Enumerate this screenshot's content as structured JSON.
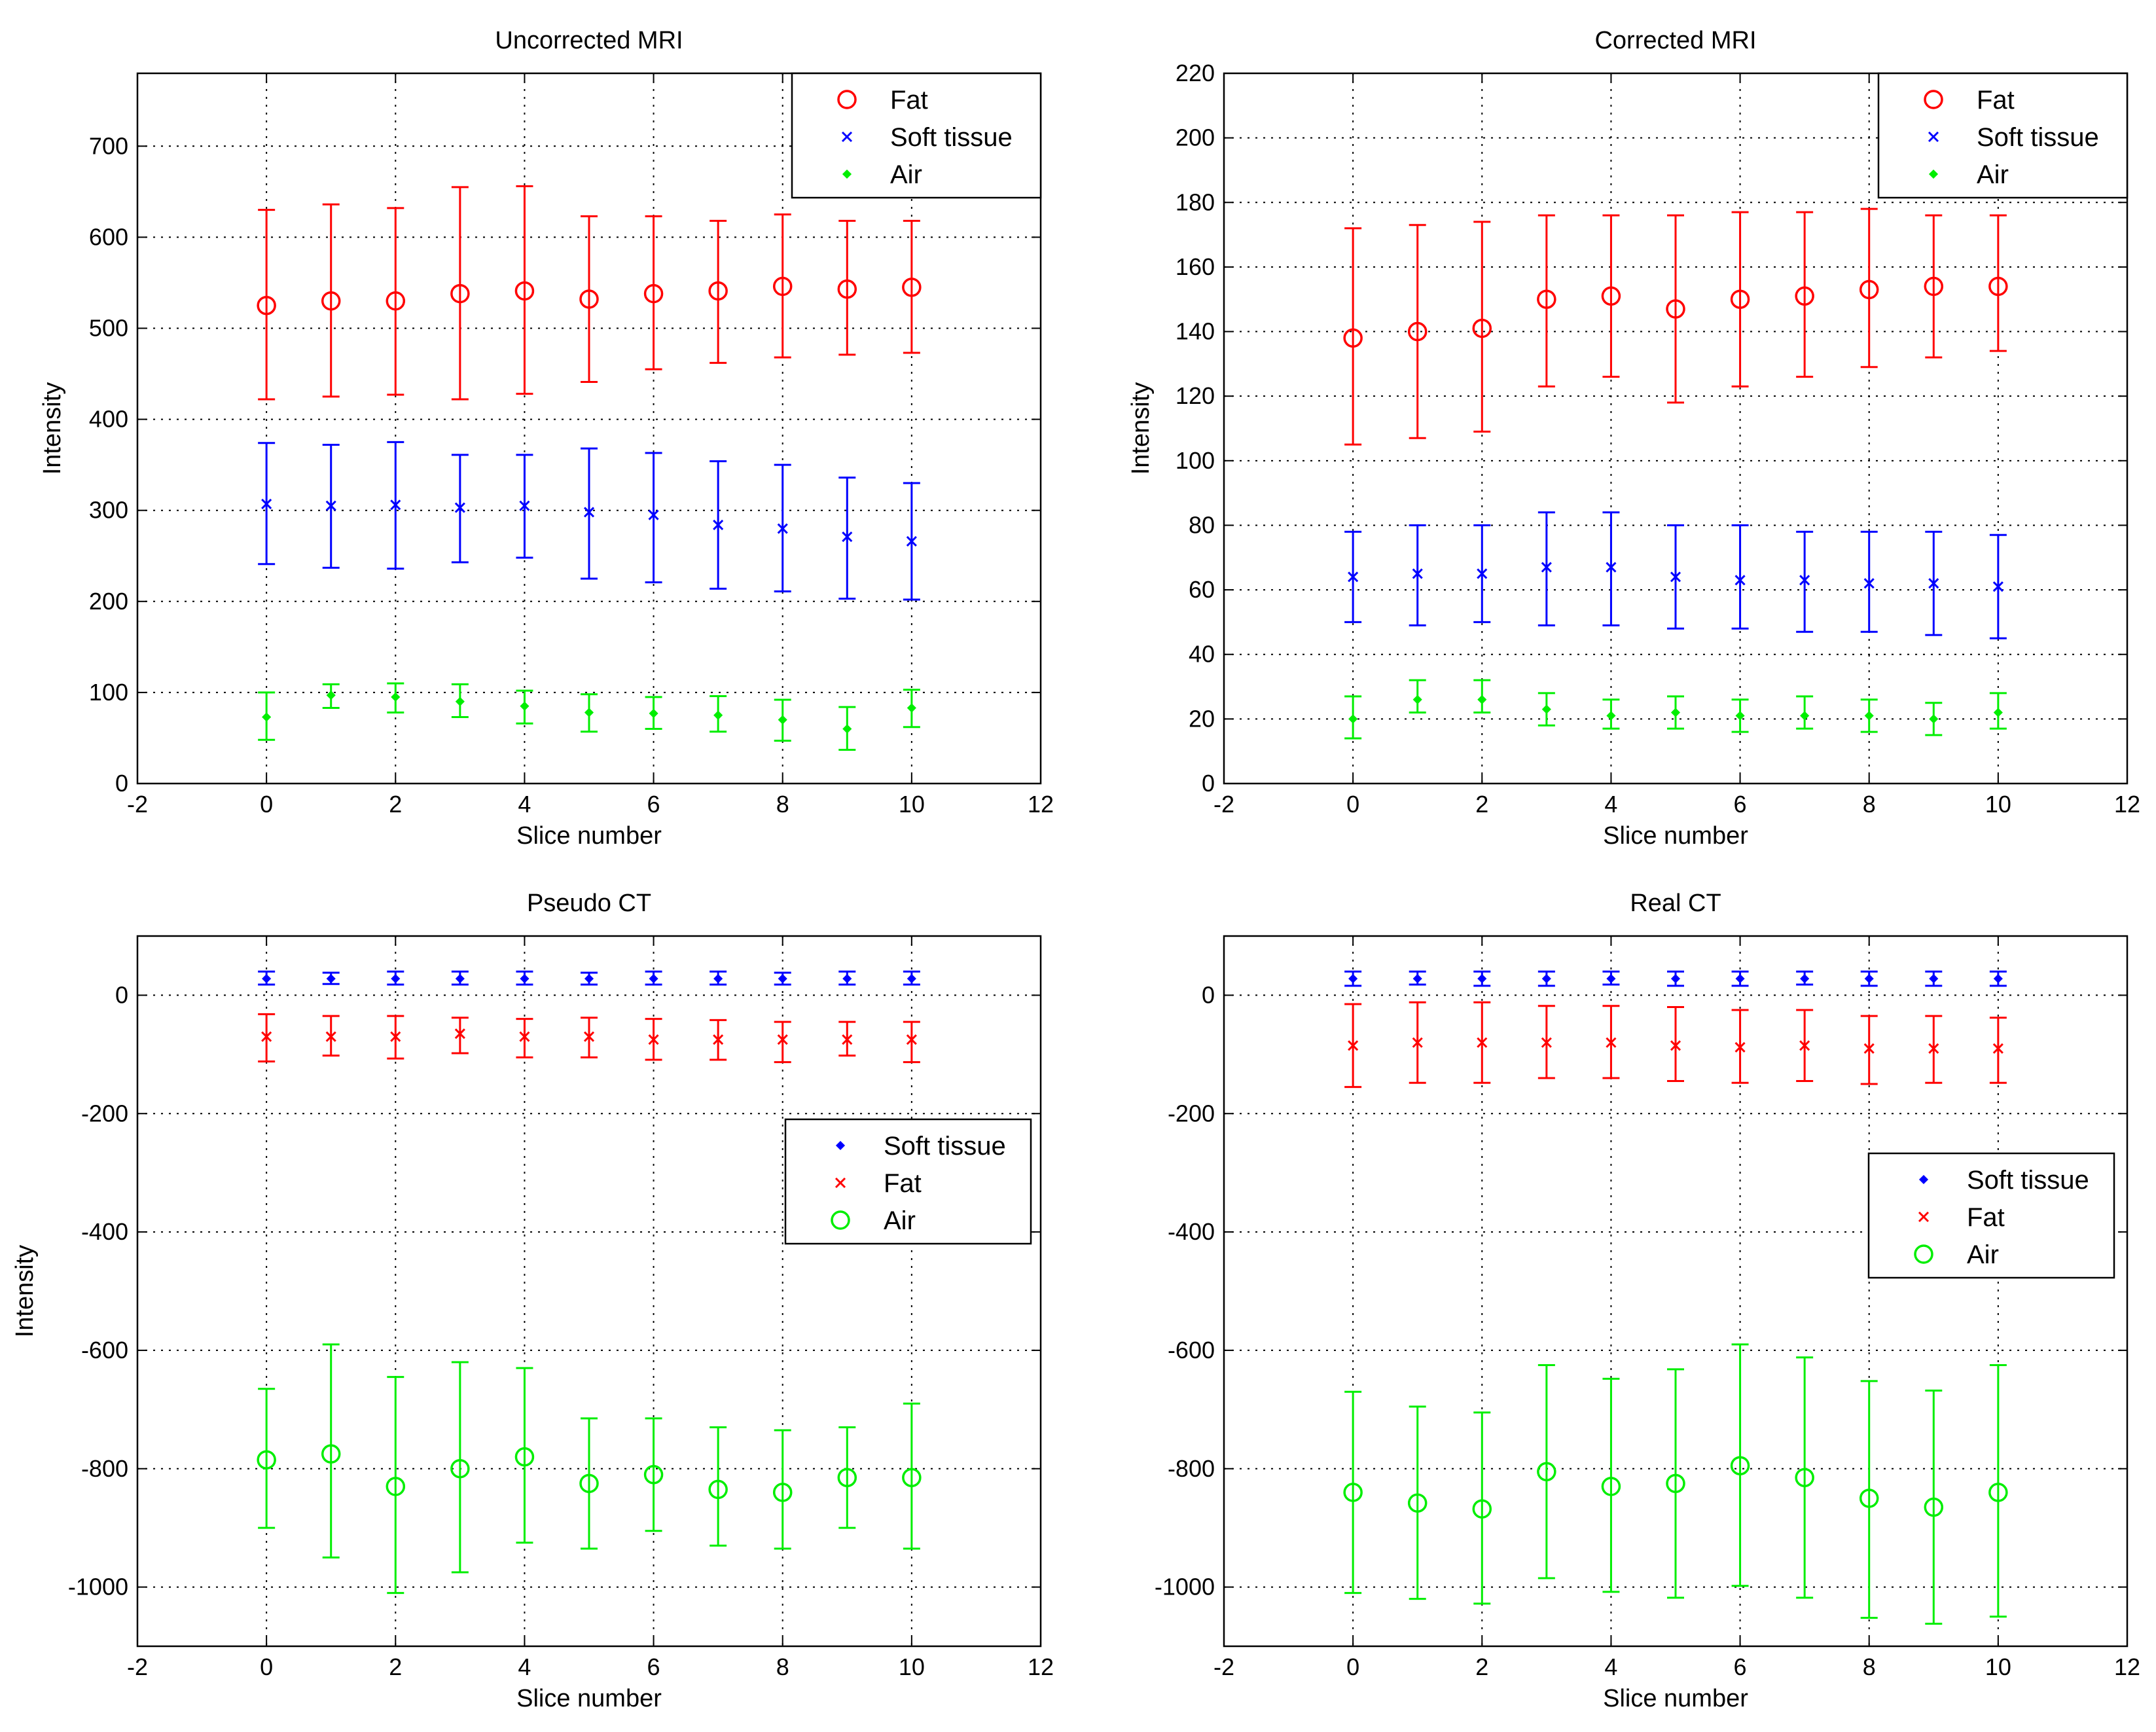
{
  "chart_data": [
    {
      "type": "scatter",
      "subtype": "errorbar",
      "title": "Uncorrected MRI",
      "xlabel": "Slice number",
      "ylabel": "Intensity",
      "xlim": [
        -2,
        12
      ],
      "ylim": [
        0,
        780
      ],
      "xticks": [
        -2,
        0,
        2,
        4,
        6,
        8,
        10,
        12
      ],
      "yticks": [
        0,
        100,
        200,
        300,
        400,
        500,
        600,
        700
      ],
      "grid": true,
      "legend_position": "top-right",
      "series": [
        {
          "name": "Fat",
          "color": "#ff0000",
          "marker": "circle",
          "x": [
            0,
            1,
            2,
            3,
            4,
            5,
            6,
            7,
            8,
            9,
            10
          ],
          "y": [
            525,
            530,
            530,
            538,
            541,
            532,
            538,
            541,
            546,
            543,
            545
          ],
          "yerr_low": [
            422,
            425,
            427,
            422,
            428,
            441,
            455,
            462,
            468,
            471,
            473
          ],
          "yerr_high": [
            630,
            636,
            632,
            655,
            656,
            623,
            623,
            618,
            625,
            618,
            618
          ]
        },
        {
          "name": "Soft tissue",
          "color": "#0000ff",
          "marker": "x",
          "x": [
            0,
            1,
            2,
            3,
            4,
            5,
            6,
            7,
            8,
            9,
            10
          ],
          "y": [
            307,
            305,
            306,
            303,
            305,
            298,
            295,
            284,
            280,
            271,
            266
          ],
          "yerr_low": [
            241,
            237,
            236,
            243,
            248,
            225,
            221,
            214,
            211,
            203,
            202
          ],
          "yerr_high": [
            374,
            372,
            375,
            361,
            361,
            368,
            363,
            354,
            350,
            336,
            330
          ]
        },
        {
          "name": "Air",
          "color": "#00ee00",
          "marker": "dot",
          "x": [
            0,
            1,
            2,
            3,
            4,
            5,
            6,
            7,
            8,
            9,
            10
          ],
          "y": [
            73,
            97,
            95,
            90,
            85,
            78,
            77,
            75,
            70,
            60,
            83
          ],
          "yerr_low": [
            48,
            83,
            78,
            73,
            66,
            57,
            60,
            57,
            47,
            37,
            62
          ],
          "yerr_high": [
            100,
            109,
            110,
            109,
            102,
            98,
            95,
            96,
            92,
            84,
            103
          ]
        }
      ]
    },
    {
      "type": "scatter",
      "subtype": "errorbar",
      "title": "Corrected MRI",
      "xlabel": "Slice number",
      "ylabel": "Intensity",
      "xlim": [
        -2,
        12
      ],
      "ylim": [
        0,
        220
      ],
      "xticks": [
        -2,
        0,
        2,
        4,
        6,
        8,
        10,
        12
      ],
      "yticks": [
        0,
        20,
        40,
        60,
        80,
        100,
        120,
        140,
        160,
        180,
        200,
        220
      ],
      "grid": true,
      "legend_position": "top-right",
      "series": [
        {
          "name": "Fat",
          "color": "#ff0000",
          "marker": "circle",
          "x": [
            0,
            1,
            2,
            3,
            4,
            5,
            6,
            7,
            8,
            9,
            10
          ],
          "y": [
            138,
            140,
            141,
            150,
            151,
            147,
            150,
            151,
            153,
            154,
            154
          ],
          "yerr_low": [
            105,
            107,
            109,
            123,
            126,
            118,
            123,
            126,
            129,
            132,
            134
          ],
          "yerr_high": [
            172,
            173,
            174,
            176,
            176,
            176,
            177,
            177,
            178,
            176,
            176
          ]
        },
        {
          "name": "Soft tissue",
          "color": "#0000ff",
          "marker": "x",
          "x": [
            0,
            1,
            2,
            3,
            4,
            5,
            6,
            7,
            8,
            9,
            10
          ],
          "y": [
            64,
            65,
            65,
            67,
            67,
            64,
            63,
            63,
            62,
            62,
            61
          ],
          "yerr_low": [
            50,
            49,
            50,
            49,
            49,
            48,
            48,
            47,
            47,
            46,
            45
          ],
          "yerr_high": [
            78,
            80,
            80,
            84,
            84,
            80,
            80,
            78,
            78,
            78,
            77
          ]
        },
        {
          "name": "Air",
          "color": "#00ee00",
          "marker": "dot",
          "x": [
            0,
            1,
            2,
            3,
            4,
            5,
            6,
            7,
            8,
            9,
            10
          ],
          "y": [
            20,
            26,
            26,
            23,
            21,
            22,
            21,
            21,
            21,
            20,
            22
          ],
          "yerr_low": [
            14,
            22,
            22,
            18,
            17,
            17,
            16,
            17,
            16,
            15,
            17
          ],
          "yerr_high": [
            27,
            32,
            32,
            28,
            26,
            27,
            26,
            27,
            26,
            25,
            28
          ]
        }
      ]
    },
    {
      "type": "scatter",
      "subtype": "errorbar",
      "title": "Pseudo CT",
      "xlabel": "Slice number",
      "ylabel": "Intensity",
      "xlim": [
        -2,
        12
      ],
      "ylim": [
        -1100,
        100
      ],
      "xticks": [
        -2,
        0,
        2,
        4,
        6,
        8,
        10,
        12
      ],
      "yticks": [
        -1000,
        -800,
        -600,
        -400,
        -200,
        0
      ],
      "grid": true,
      "legend_position": "right",
      "series": [
        {
          "name": "Soft tissue",
          "color": "#0000ff",
          "marker": "dot",
          "x": [
            0,
            1,
            2,
            3,
            4,
            5,
            6,
            7,
            8,
            9,
            10
          ],
          "y": [
            28,
            28,
            28,
            28,
            28,
            28,
            28,
            28,
            28,
            28,
            28
          ],
          "yerr_low": [
            18,
            19,
            18,
            18,
            18,
            18,
            18,
            18,
            18,
            18,
            18
          ],
          "yerr_high": [
            40,
            38,
            40,
            40,
            40,
            38,
            40,
            40,
            38,
            40,
            40
          ]
        },
        {
          "name": "Fat",
          "color": "#ff0000",
          "marker": "x",
          "x": [
            0,
            1,
            2,
            3,
            4,
            5,
            6,
            7,
            8,
            9,
            10
          ],
          "y": [
            -70,
            -70,
            -70,
            -65,
            -70,
            -70,
            -75,
            -75,
            -75,
            -75,
            -75
          ],
          "yerr_low": [
            -112,
            -102,
            -107,
            -98,
            -105,
            -105,
            -109,
            -109,
            -113,
            -102,
            -113
          ],
          "yerr_high": [
            -32,
            -35,
            -35,
            -38,
            -40,
            -38,
            -40,
            -42,
            -45,
            -45,
            -45
          ]
        },
        {
          "name": "Air",
          "color": "#00ee00",
          "marker": "circle",
          "x": [
            0,
            1,
            2,
            3,
            4,
            5,
            6,
            7,
            8,
            9,
            10
          ],
          "y": [
            -785,
            -775,
            -830,
            -800,
            -780,
            -825,
            -810,
            -835,
            -840,
            -815,
            -815
          ],
          "yerr_low": [
            -900,
            -950,
            -1010,
            -975,
            -925,
            -935,
            -905,
            -930,
            -935,
            -900,
            -935
          ],
          "yerr_high": [
            -665,
            -590,
            -645,
            -620,
            -630,
            -715,
            -715,
            -730,
            -735,
            -730,
            -690
          ]
        }
      ]
    },
    {
      "type": "scatter",
      "subtype": "errorbar",
      "title": "Real CT",
      "xlabel": "Slice number",
      "ylabel": "",
      "xlim": [
        -2,
        12
      ],
      "ylim": [
        -1100,
        100
      ],
      "xticks": [
        -2,
        0,
        2,
        4,
        6,
        8,
        10,
        12
      ],
      "yticks": [
        -1000,
        -800,
        -600,
        -400,
        -200,
        0
      ],
      "grid": true,
      "legend_position": "right",
      "series": [
        {
          "name": "Soft tissue",
          "color": "#0000ff",
          "marker": "dot",
          "x": [
            0,
            1,
            2,
            3,
            4,
            5,
            6,
            7,
            8,
            9,
            10
          ],
          "y": [
            28,
            28,
            28,
            28,
            28,
            28,
            28,
            28,
            28,
            28,
            28
          ],
          "yerr_low": [
            16,
            18,
            16,
            16,
            18,
            16,
            16,
            18,
            16,
            16,
            16
          ],
          "yerr_high": [
            40,
            40,
            40,
            40,
            40,
            40,
            40,
            40,
            40,
            40,
            40
          ]
        },
        {
          "name": "Fat",
          "color": "#ff0000",
          "marker": "x",
          "x": [
            0,
            1,
            2,
            3,
            4,
            5,
            6,
            7,
            8,
            9,
            10
          ],
          "y": [
            -85,
            -80,
            -80,
            -80,
            -80,
            -85,
            -88,
            -85,
            -90,
            -90,
            -90
          ],
          "yerr_low": [
            -155,
            -148,
            -148,
            -140,
            -140,
            -145,
            -148,
            -145,
            -150,
            -148,
            -148
          ],
          "yerr_high": [
            -15,
            -12,
            -12,
            -18,
            -18,
            -20,
            -25,
            -25,
            -35,
            -35,
            -38
          ]
        },
        {
          "name": "Air",
          "color": "#00ee00",
          "marker": "circle",
          "x": [
            0,
            1,
            2,
            3,
            4,
            5,
            6,
            7,
            8,
            9,
            10
          ],
          "y": [
            -840,
            -858,
            -868,
            -805,
            -830,
            -825,
            -795,
            -815,
            -850,
            -865,
            -840
          ],
          "yerr_low": [
            -1010,
            -1020,
            -1028,
            -985,
            -1008,
            -1018,
            -998,
            -1018,
            -1052,
            -1062,
            -1050
          ],
          "yerr_high": [
            -670,
            -695,
            -705,
            -625,
            -648,
            -632,
            -590,
            -612,
            -652,
            -668,
            -625
          ]
        }
      ]
    }
  ]
}
